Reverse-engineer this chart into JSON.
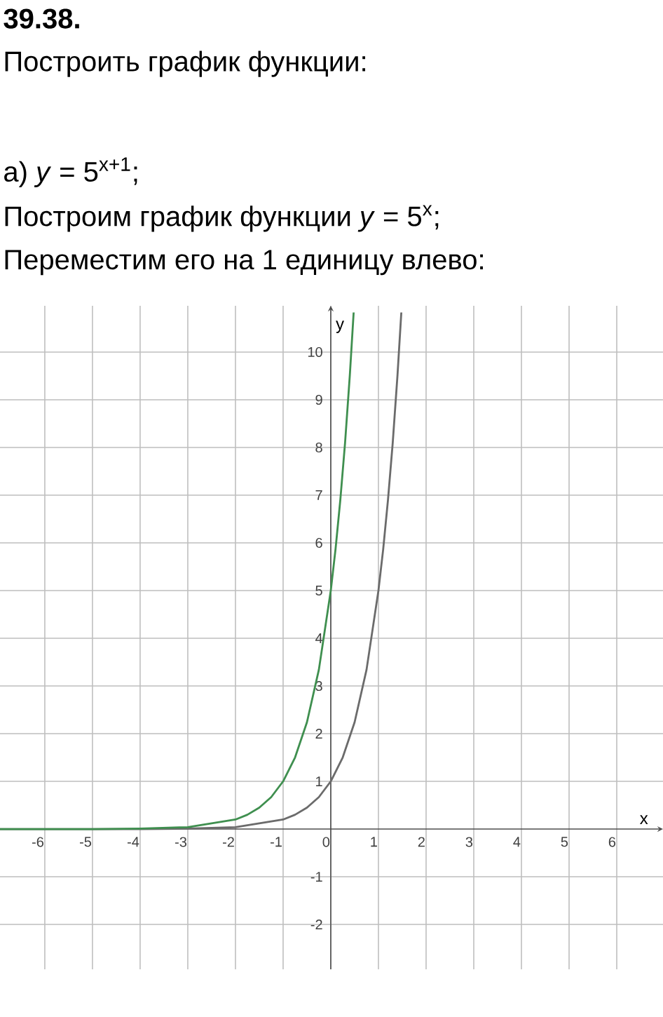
{
  "chart_data": {
    "type": "line",
    "title": "39.38.",
    "subtitle": "Построить график функции:",
    "annotations": [
      "а) *y* = 5$^{x+1}$;",
      "Построим график функции *y* = 5$^{x}$;",
      "Переместим его на 1 единицу влево:"
    ],
    "xlabel": "x",
    "ylabel": "y",
    "xlim": [
      -6.94,
      6.97
    ],
    "ylim": [
      -2.94,
      10.97
    ],
    "xticks": [
      -6,
      -5,
      -4,
      -3,
      -2,
      -1,
      0,
      1,
      2,
      3,
      4,
      5,
      6
    ],
    "yticks": [
      -2,
      -1,
      1,
      2,
      3,
      4,
      5,
      6,
      7,
      8,
      9,
      10
    ],
    "grid": true,
    "marker": "none",
    "line_style": "solid",
    "series": [
      {
        "color": "#6b6b6b",
        "x": [
          -6.94,
          -6,
          -5,
          -4,
          -3,
          -2,
          -1,
          -0.75,
          -0.5,
          -0.25,
          0,
          0.25,
          0.5,
          0.75,
          1,
          1.1,
          1.2,
          1.3,
          1.4,
          1.48
        ],
        "values": [
          0,
          0,
          0,
          0,
          0.01,
          0.04,
          0.2,
          0.3,
          0.45,
          0.67,
          1,
          1.5,
          2.24,
          3.34,
          5,
          5.87,
          6.9,
          8.1,
          9.52,
          10.83
        ]
      },
      {
        "color": "#3f8f4f",
        "x": [
          -6.94,
          -6,
          -5,
          -4,
          -3,
          -2,
          -1.75,
          -1.5,
          -1.25,
          -1,
          -0.75,
          -0.5,
          -0.25,
          0,
          0.1,
          0.2,
          0.3,
          0.4,
          0.48
        ],
        "values": [
          0,
          0,
          0,
          0.01,
          0.04,
          0.2,
          0.3,
          0.45,
          0.67,
          1,
          1.5,
          2.24,
          3.34,
          5,
          5.87,
          6.9,
          8.1,
          9.52,
          10.83
        ]
      }
    ]
  }
}
